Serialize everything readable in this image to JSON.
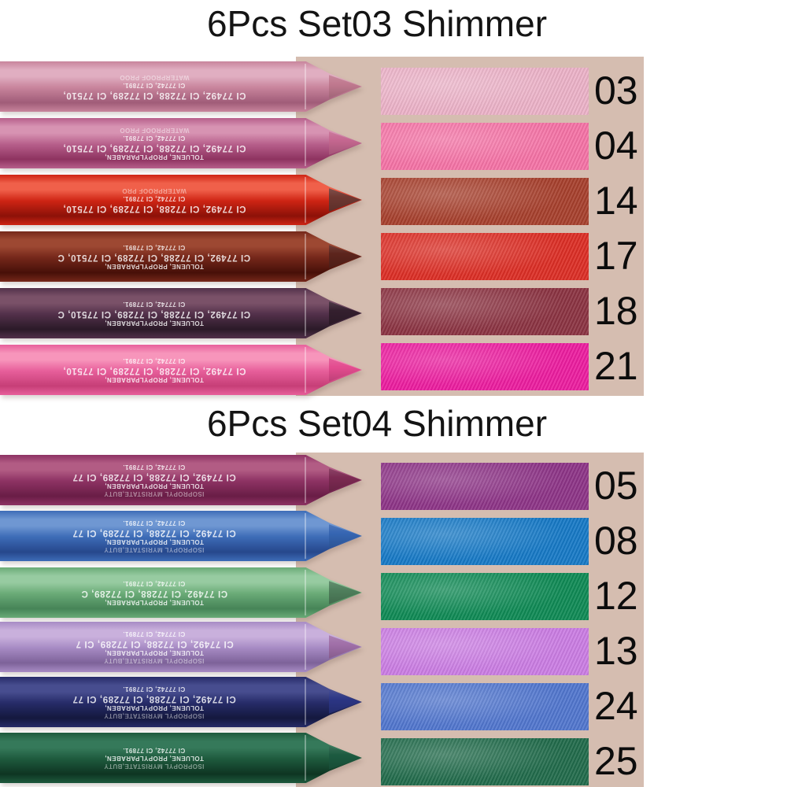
{
  "page": {
    "background": "#ffffff",
    "panel_color": "#d5bdb0",
    "title_color": "#141414",
    "number_color": "#0c0c0c"
  },
  "sets": [
    {
      "title": "6Pcs Set03 Shimmer",
      "pencils": [
        {
          "name": "mauve-pink",
          "colors": [
            "#e0aec1",
            "#c8849c",
            "#a05c78"
          ],
          "lead": "#c0798f",
          "markings": [
            "WATERPROOF PROO",
            "CI 77742, CI 77891.",
            "CI 77492, CI 77288, CI 77289, CI 77510,"
          ]
        },
        {
          "name": "rose-magenta",
          "colors": [
            "#d793b2",
            "#b75f8b",
            "#8e3360"
          ],
          "lead": "#c4668f",
          "markings": [
            "WATERPROOF PROO",
            "CI 77742, CI 77891.",
            "CI 77492, CI 77288, CI 77289, CI 77510,",
            "TOLUENE, PROPYLPARABEN,"
          ]
        },
        {
          "name": "red",
          "colors": [
            "#f0604a",
            "#ce2414",
            "#8c1108"
          ],
          "lead": "#6e3832",
          "markings": [
            "WATERPROOF PRO",
            "CI 77742, CI 77891.",
            "CI 77492, CI 77288, CI 77289, CI 77510,"
          ]
        },
        {
          "name": "dark-maroon",
          "colors": [
            "#9d4832",
            "#75271a",
            "#471008"
          ],
          "lead": "#5c241c",
          "markings": [
            "CI 77742, CI 77891.",
            "CI 77492, CI 77288, CI 77289, CI 77510, C",
            "TOLUENE, PROPYLPARABEN,"
          ]
        },
        {
          "name": "dark-plum",
          "colors": [
            "#7a5168",
            "#52304a",
            "#2b1a28"
          ],
          "lead": "#341f2e",
          "markings": [
            "CI 77742, CI 77891.",
            "CI 77492, CI 77288, CI 77289, CI 77510, C",
            "TOLUENE, PROPYLPARABEN,"
          ]
        },
        {
          "name": "pink",
          "colors": [
            "#f795bb",
            "#e75f9b",
            "#c63e77"
          ],
          "lead": "#e34c8f",
          "markings": [
            "CI 77742, CI 77891.",
            "CI 77492, CI 77288, CI 77289, CI 77510,",
            "TOLUENE, PROPYLPARABEN,"
          ]
        }
      ],
      "swatches": [
        {
          "number": "03",
          "color": "#ecb2c8"
        },
        {
          "number": "04",
          "color": "#f573a6"
        },
        {
          "number": "14",
          "color": "#a7402d"
        },
        {
          "number": "17",
          "color": "#dc2e25"
        },
        {
          "number": "18",
          "color": "#8b3342"
        },
        {
          "number": "21",
          "color": "#ec1d9f"
        }
      ]
    },
    {
      "title": "6Pcs Set04 Shimmer",
      "pencils": [
        {
          "name": "plum-magenta",
          "colors": [
            "#b25c84",
            "#8d3263",
            "#691d46"
          ],
          "lead": "#7c2a52",
          "markings": [
            "CI 77742, CI 77891.",
            "CI 77492, CI 77288, CI 77289, CI 77",
            "TOLUENE, PROPYLPARABEN,",
            "ISOPROPYL MYRISTATE,BUTY"
          ]
        },
        {
          "name": "blue",
          "colors": [
            "#6f97d2",
            "#3d6cb7",
            "#26478c"
          ],
          "lead": "#3565b2",
          "markings": [
            "CI 77742, CI 77891.",
            "CI 77492, CI 77288, CI 77289, CI 77",
            "TOLUENE, PROPYLPARABEN,",
            "ISOPROPYL MYRISTATE,BUTY"
          ]
        },
        {
          "name": "green",
          "colors": [
            "#97cba1",
            "#6aab77",
            "#468457"
          ],
          "lead": "#4f7f5c",
          "markings": [
            "CI 77742, CI 77891.",
            "CI 77492, CI 77288, CI 77289, C",
            "TOLUENE, PROPYLPARABEN,"
          ]
        },
        {
          "name": "lavender",
          "colors": [
            "#c9b0dc",
            "#a78bc4",
            "#7d6299"
          ],
          "lead": "#a06fa8",
          "markings": [
            "CI 77742, CI 77891.",
            "CI 77492, CI 77288, CI 77289, CI 7",
            "TOLUENE, PROPYLPARABEN,",
            "ISOPROPYL MYRISTATE,BUTY"
          ]
        },
        {
          "name": "navy-blue",
          "colors": [
            "#474d8f",
            "#262b68",
            "#14183e"
          ],
          "lead": "#2b3584",
          "markings": [
            "CI 77742, CI 77891.",
            "CI 77492, CI 77288, CI 77289, CI 77",
            "TOLUENE, PROPYLPARABEN,",
            "ISOPROPYL MYRISTATE,BUTY"
          ]
        },
        {
          "name": "dark-green",
          "colors": [
            "#35795a",
            "#1e5a3d",
            "#0e3522"
          ],
          "lead": "#1c5a40",
          "markings": [
            "CI 77742, CI 77891.",
            "TOLUENE, PROPYLPARABEN,",
            "ISOPROPYL MYRISTATE,BUTY"
          ]
        }
      ],
      "swatches": [
        {
          "number": "05",
          "color": "#8d3487"
        },
        {
          "number": "08",
          "color": "#1679c6"
        },
        {
          "number": "12",
          "color": "#0f8a55"
        },
        {
          "number": "13",
          "color": "#cb7de3"
        },
        {
          "number": "24",
          "color": "#5176ce"
        },
        {
          "number": "25",
          "color": "#216b4b"
        }
      ]
    }
  ]
}
